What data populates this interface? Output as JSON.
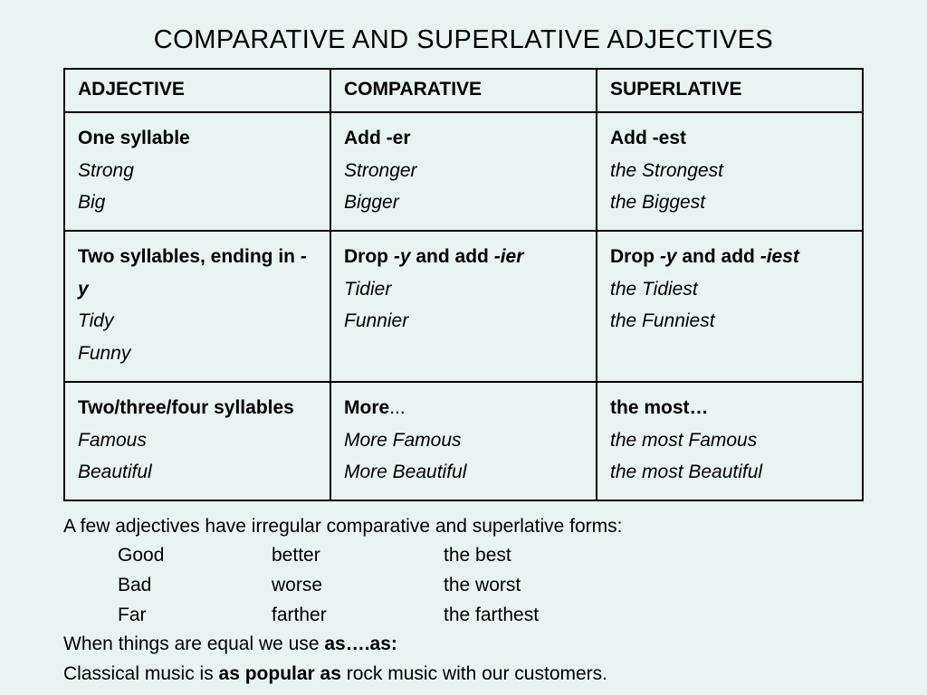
{
  "title": "COMPARATIVE AND SUPERLATIVE ADJECTIVES",
  "headers": {
    "adjective": "ADJECTIVE",
    "comparative": "COMPARATIVE",
    "superlative": "SUPERLATIVE"
  },
  "rows": {
    "one": {
      "adj_rule_a": "One syllable",
      "adj_ex1": "Strong",
      "adj_ex2": "Big",
      "comp_rule_a": "Add -er",
      "comp_ex1": "Stronger",
      "comp_ex2": "Bigger",
      "sup_rule_a": "Add -est",
      "sup_ex1": "the Strongest",
      "sup_ex2": "the Biggest"
    },
    "two_y": {
      "adj_rule_a": "Two syllables, ending in ",
      "adj_rule_b": "-y",
      "adj_ex1": "Tidy",
      "adj_ex2": "Funny",
      "comp_rule_a": "Drop ",
      "comp_rule_b": "-y",
      "comp_rule_c": " and add ",
      "comp_rule_d": "-ier",
      "comp_ex1": "Tidier",
      "comp_ex2": "Funnier",
      "sup_rule_a": "Drop ",
      "sup_rule_b": "-y",
      "sup_rule_c": " and add ",
      "sup_rule_d": "-iest",
      "sup_ex1": "the Tidiest",
      "sup_ex2": "the Funniest"
    },
    "multi": {
      "adj_rule_a": "Two/three/four syllables",
      "adj_ex1": "Famous",
      "adj_ex2": "Beautiful",
      "comp_rule_a": "More",
      "comp_rule_b": "...",
      "comp_ex1": "More Famous",
      "comp_ex2": "More Beautiful",
      "sup_rule_a": "the most…",
      "sup_ex1": "the most Famous",
      "sup_ex2": "the most Beautiful"
    }
  },
  "notes": {
    "intro": "A few adjectives have irregular comparative and superlative forms:",
    "irregular": [
      {
        "base": "Good",
        "comp": "better",
        "sup": "the best"
      },
      {
        "base": "Bad",
        "comp": "worse",
        "sup": "the worst"
      },
      {
        "base": "Far",
        "comp": "farther",
        "sup": "the farthest"
      }
    ],
    "equal_a": "When things are equal we use ",
    "equal_b": "as….as:",
    "example_a": "Classical music is ",
    "example_b": "as popular as",
    "example_c": " rock music with our customers."
  },
  "style": {
    "background_color": "#e9f3f2",
    "text_color": "#000000",
    "border_color": "#000000",
    "title_fontsize": 29,
    "body_fontsize": 21,
    "col_widths_pct": [
      33.33,
      33.33,
      33.33
    ]
  }
}
